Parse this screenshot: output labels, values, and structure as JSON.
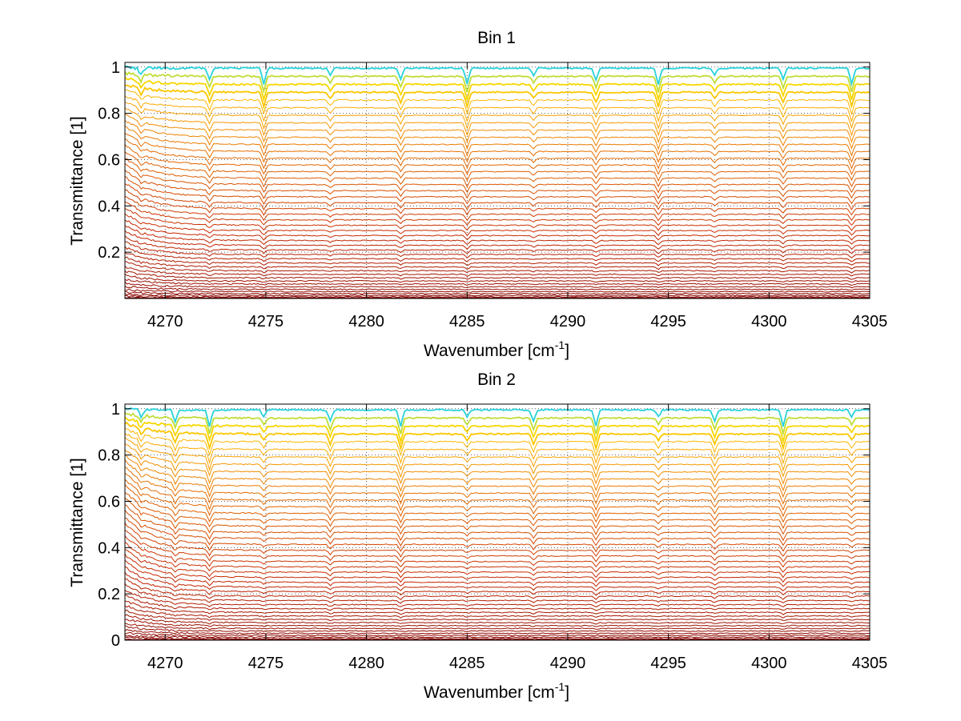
{
  "chart_data": [
    {
      "type": "line",
      "title": "Bin 1",
      "xlabel": "Wavenumber [cm",
      "xlabel_sup": "-1",
      "xlabel_end": "]",
      "ylabel": "Transmittance [1]",
      "xlim": [
        4268,
        4305
      ],
      "ylim": [
        0,
        1.02
      ],
      "xticks": [
        4270,
        4275,
        4280,
        4285,
        4290,
        4295,
        4300,
        4305
      ],
      "yticks": [
        0.2,
        0.4,
        0.6,
        0.8,
        1
      ],
      "ytick_labels": [
        "0.2",
        "0.4",
        "0.6",
        "0.8",
        "1"
      ],
      "grid": true,
      "colormap": "jet (cyan → yellow → orange → dark red)",
      "series_count": 46,
      "level_range": [
        0.0,
        1.0
      ],
      "absorption_lines": [
        4268.8,
        4272.2,
        4274.9,
        4278.2,
        4281.7,
        4285.0,
        4288.3,
        4291.4,
        4294.5,
        4297.3,
        4300.7,
        4304.1
      ]
    },
    {
      "type": "line",
      "title": "Bin 2",
      "xlabel": "Wavenumber [cm",
      "xlabel_sup": "-1",
      "xlabel_end": "]",
      "ylabel": "Transmittance [1]",
      "xlim": [
        4268,
        4305
      ],
      "ylim": [
        0,
        1.02
      ],
      "xticks": [
        4270,
        4275,
        4280,
        4285,
        4290,
        4295,
        4300,
        4305
      ],
      "yticks": [
        0,
        0.2,
        0.4,
        0.6,
        0.8,
        1
      ],
      "ytick_labels": [
        "0",
        "0.2",
        "0.4",
        "0.6",
        "0.8",
        "1"
      ],
      "grid": true,
      "colormap": "jet (cyan → yellow → orange → dark red)",
      "series_count": 46,
      "level_range": [
        0.0,
        1.0
      ],
      "absorption_lines": [
        4268.8,
        4270.5,
        4272.2,
        4274.9,
        4278.2,
        4281.7,
        4285.0,
        4288.3,
        4291.4,
        4294.5,
        4297.3,
        4300.7,
        4304.1
      ]
    }
  ]
}
